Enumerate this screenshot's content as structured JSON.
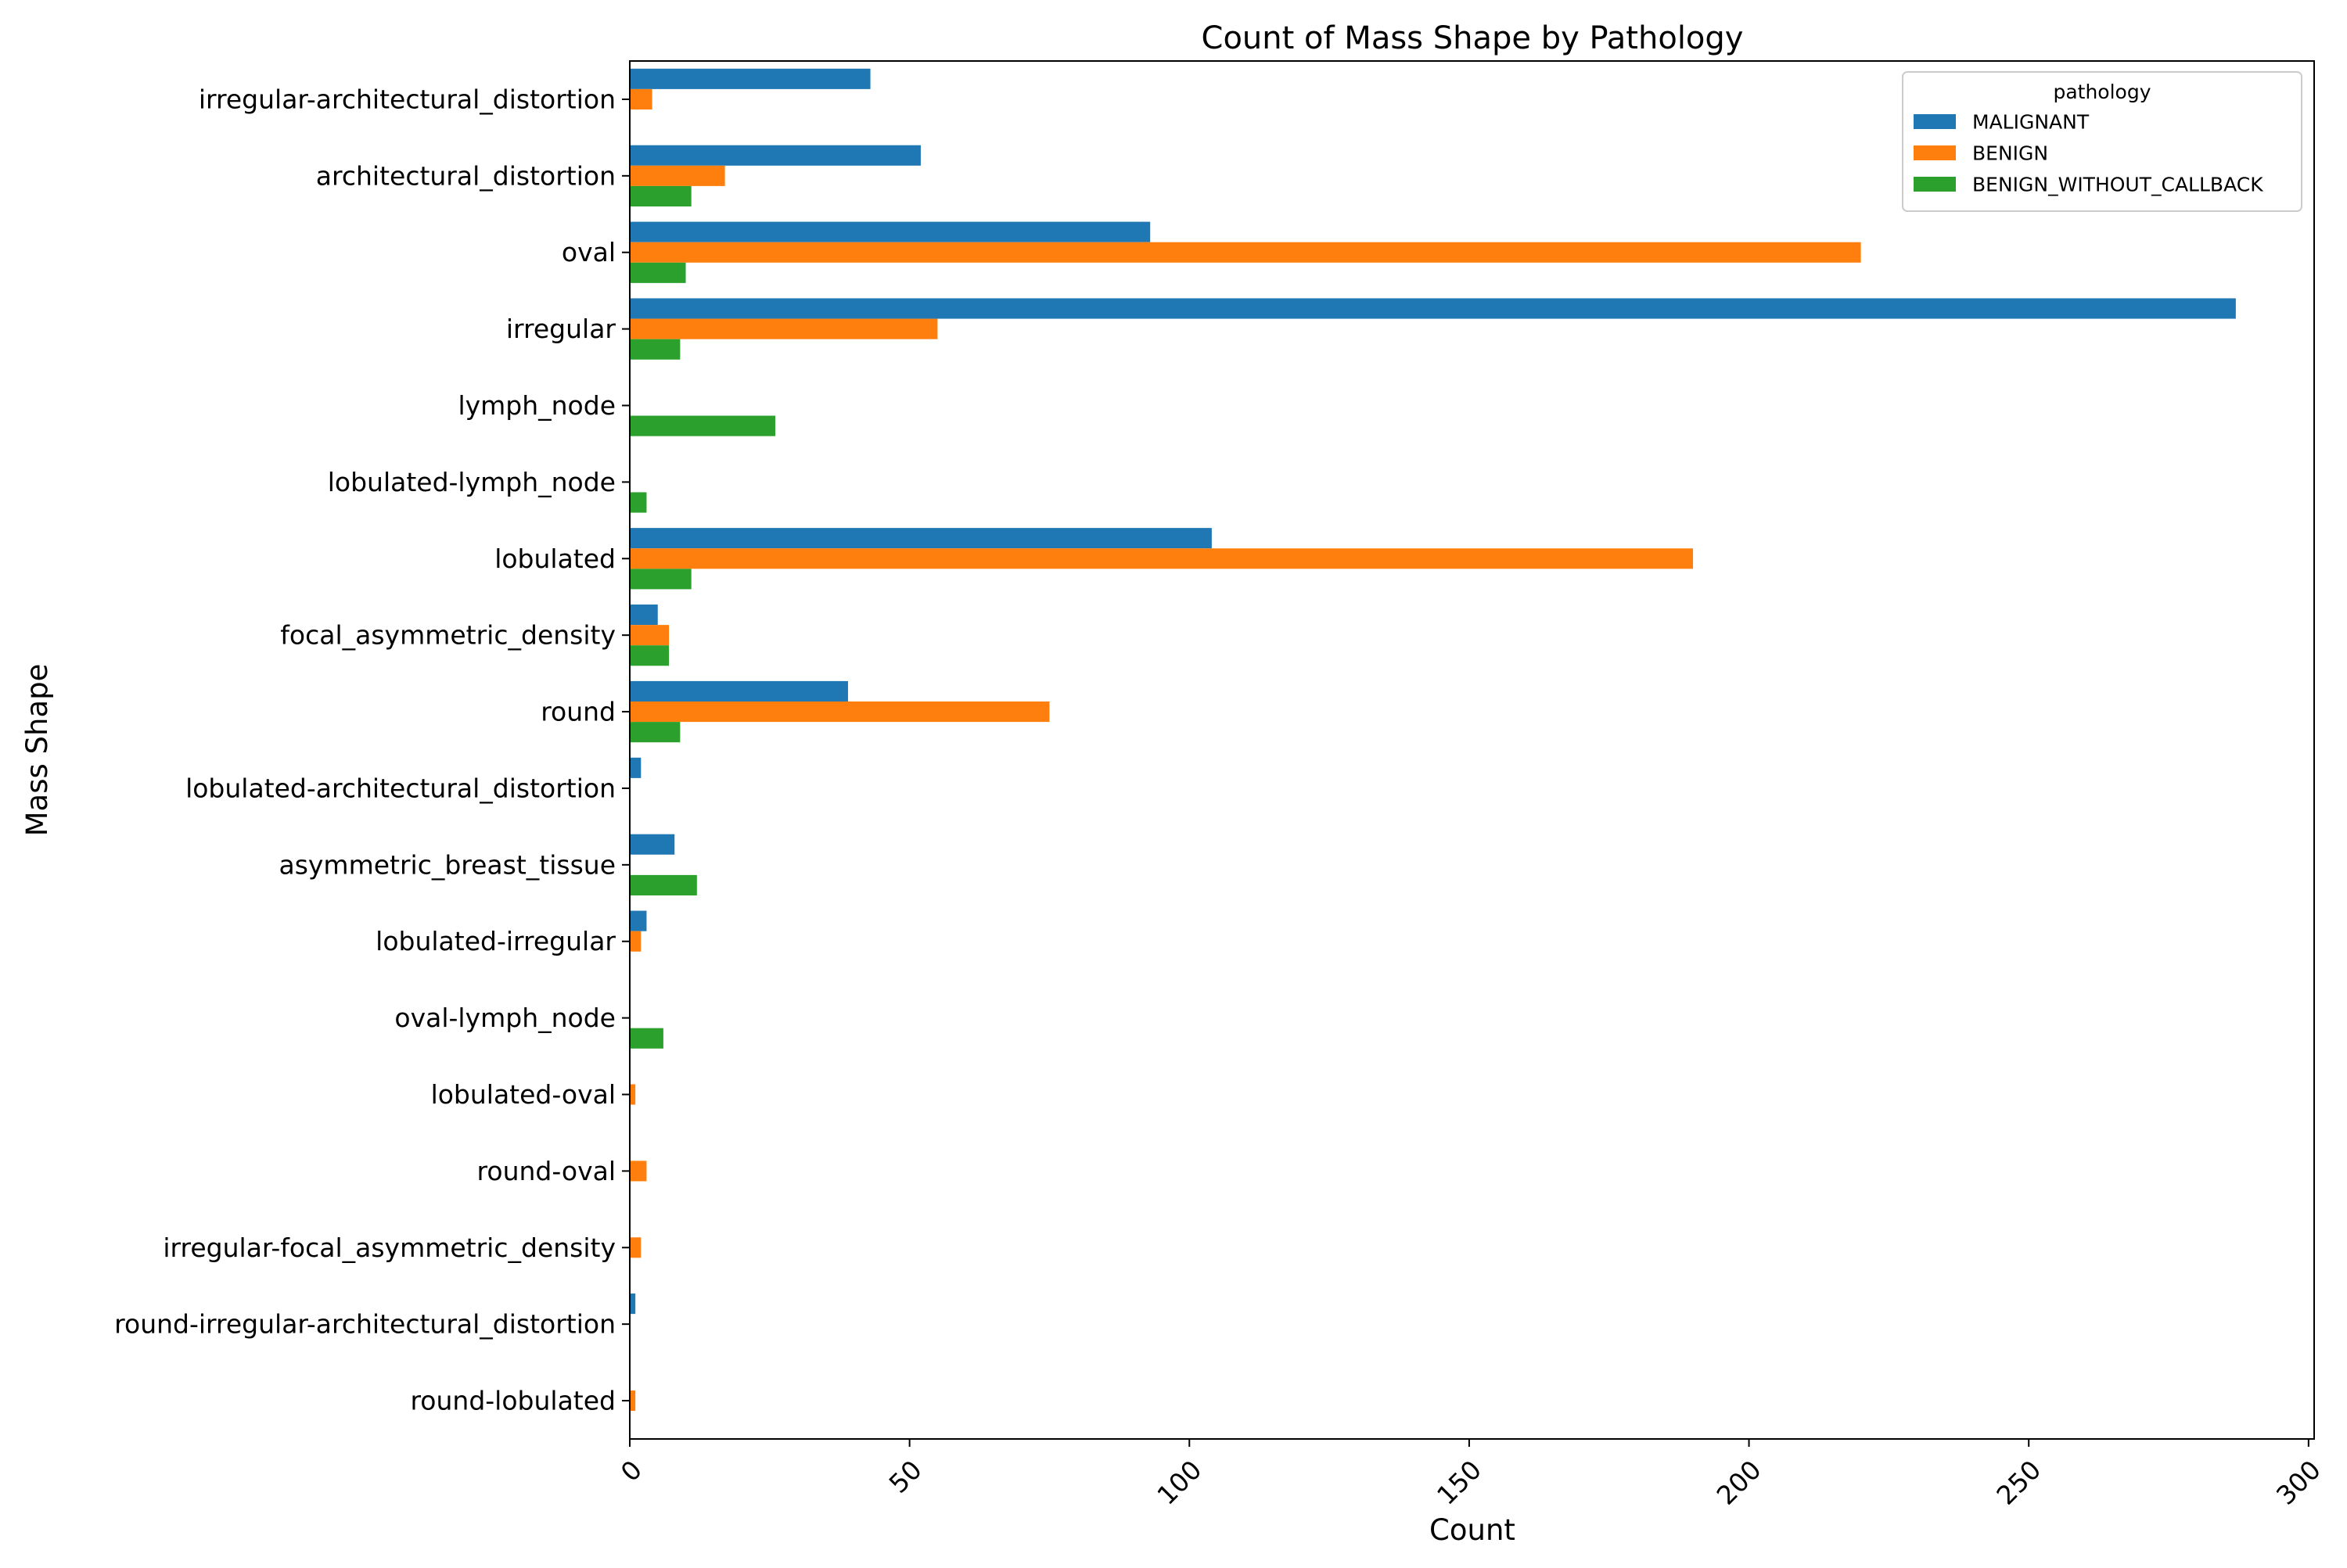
{
  "chart_data": {
    "type": "bar",
    "orientation": "horizontal",
    "title": "Count of Mass Shape by Pathology",
    "xlabel": "Count",
    "ylabel": "Mass Shape",
    "xlim": [
      0,
      301
    ],
    "xticks": [
      0,
      50,
      100,
      150,
      200,
      250,
      300
    ],
    "grid": false,
    "legend": {
      "title": "pathology",
      "placement": "top-right"
    },
    "categories": [
      "irregular-architectural_distortion",
      "architectural_distortion",
      "oval",
      "irregular",
      "lymph_node",
      "lobulated-lymph_node",
      "lobulated",
      "focal_asymmetric_density",
      "round",
      "lobulated-architectural_distortion",
      "asymmetric_breast_tissue",
      "lobulated-irregular",
      "oval-lymph_node",
      "lobulated-oval",
      "round-oval",
      "irregular-focal_asymmetric_density",
      "round-irregular-architectural_distortion",
      "round-lobulated"
    ],
    "series": [
      {
        "name": "MALIGNANT",
        "color": "#1f77b4",
        "values": [
          43,
          52,
          93,
          287,
          0,
          0,
          104,
          5,
          39,
          2,
          8,
          3,
          0,
          0,
          0,
          0,
          1,
          0
        ]
      },
      {
        "name": "BENIGN",
        "color": "#ff7f0e",
        "values": [
          4,
          17,
          220,
          55,
          0,
          0,
          190,
          7,
          75,
          0,
          0,
          2,
          0,
          1,
          3,
          2,
          0,
          1
        ]
      },
      {
        "name": "BENIGN_WITHOUT_CALLBACK",
        "color": "#2ca02c",
        "values": [
          0,
          11,
          10,
          9,
          26,
          3,
          11,
          7,
          9,
          0,
          12,
          0,
          6,
          0,
          0,
          0,
          0,
          0
        ]
      }
    ]
  }
}
